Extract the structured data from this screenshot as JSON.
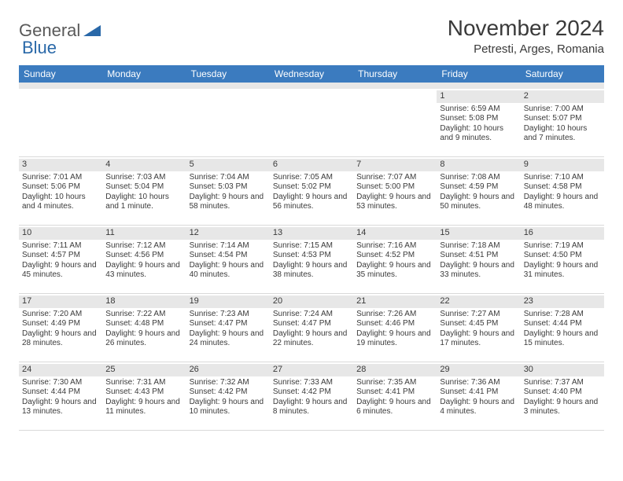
{
  "logo": {
    "text1": "General",
    "text2": "Blue"
  },
  "title": "November 2024",
  "location": "Petresti, Arges, Romania",
  "colors": {
    "header_bg": "#3b7bbf",
    "header_text": "#ffffff",
    "daynum_bg": "#e7e7e7",
    "text": "#3a3a3a",
    "logo_gray": "#595959",
    "logo_blue": "#2968a8",
    "border": "#d9d9d9",
    "background": "#ffffff"
  },
  "typography": {
    "title_fontsize": 28,
    "location_fontsize": 15,
    "dow_fontsize": 12,
    "daynum_fontsize": 11,
    "body_fontsize": 10
  },
  "dow": [
    "Sunday",
    "Monday",
    "Tuesday",
    "Wednesday",
    "Thursday",
    "Friday",
    "Saturday"
  ],
  "weeks": [
    [
      {
        "n": "",
        "sr": "",
        "ss": "",
        "dl": ""
      },
      {
        "n": "",
        "sr": "",
        "ss": "",
        "dl": ""
      },
      {
        "n": "",
        "sr": "",
        "ss": "",
        "dl": ""
      },
      {
        "n": "",
        "sr": "",
        "ss": "",
        "dl": ""
      },
      {
        "n": "",
        "sr": "",
        "ss": "",
        "dl": ""
      },
      {
        "n": "1",
        "sr": "Sunrise: 6:59 AM",
        "ss": "Sunset: 5:08 PM",
        "dl": "Daylight: 10 hours and 9 minutes."
      },
      {
        "n": "2",
        "sr": "Sunrise: 7:00 AM",
        "ss": "Sunset: 5:07 PM",
        "dl": "Daylight: 10 hours and 7 minutes."
      }
    ],
    [
      {
        "n": "3",
        "sr": "Sunrise: 7:01 AM",
        "ss": "Sunset: 5:06 PM",
        "dl": "Daylight: 10 hours and 4 minutes."
      },
      {
        "n": "4",
        "sr": "Sunrise: 7:03 AM",
        "ss": "Sunset: 5:04 PM",
        "dl": "Daylight: 10 hours and 1 minute."
      },
      {
        "n": "5",
        "sr": "Sunrise: 7:04 AM",
        "ss": "Sunset: 5:03 PM",
        "dl": "Daylight: 9 hours and 58 minutes."
      },
      {
        "n": "6",
        "sr": "Sunrise: 7:05 AM",
        "ss": "Sunset: 5:02 PM",
        "dl": "Daylight: 9 hours and 56 minutes."
      },
      {
        "n": "7",
        "sr": "Sunrise: 7:07 AM",
        "ss": "Sunset: 5:00 PM",
        "dl": "Daylight: 9 hours and 53 minutes."
      },
      {
        "n": "8",
        "sr": "Sunrise: 7:08 AM",
        "ss": "Sunset: 4:59 PM",
        "dl": "Daylight: 9 hours and 50 minutes."
      },
      {
        "n": "9",
        "sr": "Sunrise: 7:10 AM",
        "ss": "Sunset: 4:58 PM",
        "dl": "Daylight: 9 hours and 48 minutes."
      }
    ],
    [
      {
        "n": "10",
        "sr": "Sunrise: 7:11 AM",
        "ss": "Sunset: 4:57 PM",
        "dl": "Daylight: 9 hours and 45 minutes."
      },
      {
        "n": "11",
        "sr": "Sunrise: 7:12 AM",
        "ss": "Sunset: 4:56 PM",
        "dl": "Daylight: 9 hours and 43 minutes."
      },
      {
        "n": "12",
        "sr": "Sunrise: 7:14 AM",
        "ss": "Sunset: 4:54 PM",
        "dl": "Daylight: 9 hours and 40 minutes."
      },
      {
        "n": "13",
        "sr": "Sunrise: 7:15 AM",
        "ss": "Sunset: 4:53 PM",
        "dl": "Daylight: 9 hours and 38 minutes."
      },
      {
        "n": "14",
        "sr": "Sunrise: 7:16 AM",
        "ss": "Sunset: 4:52 PM",
        "dl": "Daylight: 9 hours and 35 minutes."
      },
      {
        "n": "15",
        "sr": "Sunrise: 7:18 AM",
        "ss": "Sunset: 4:51 PM",
        "dl": "Daylight: 9 hours and 33 minutes."
      },
      {
        "n": "16",
        "sr": "Sunrise: 7:19 AM",
        "ss": "Sunset: 4:50 PM",
        "dl": "Daylight: 9 hours and 31 minutes."
      }
    ],
    [
      {
        "n": "17",
        "sr": "Sunrise: 7:20 AM",
        "ss": "Sunset: 4:49 PM",
        "dl": "Daylight: 9 hours and 28 minutes."
      },
      {
        "n": "18",
        "sr": "Sunrise: 7:22 AM",
        "ss": "Sunset: 4:48 PM",
        "dl": "Daylight: 9 hours and 26 minutes."
      },
      {
        "n": "19",
        "sr": "Sunrise: 7:23 AM",
        "ss": "Sunset: 4:47 PM",
        "dl": "Daylight: 9 hours and 24 minutes."
      },
      {
        "n": "20",
        "sr": "Sunrise: 7:24 AM",
        "ss": "Sunset: 4:47 PM",
        "dl": "Daylight: 9 hours and 22 minutes."
      },
      {
        "n": "21",
        "sr": "Sunrise: 7:26 AM",
        "ss": "Sunset: 4:46 PM",
        "dl": "Daylight: 9 hours and 19 minutes."
      },
      {
        "n": "22",
        "sr": "Sunrise: 7:27 AM",
        "ss": "Sunset: 4:45 PM",
        "dl": "Daylight: 9 hours and 17 minutes."
      },
      {
        "n": "23",
        "sr": "Sunrise: 7:28 AM",
        "ss": "Sunset: 4:44 PM",
        "dl": "Daylight: 9 hours and 15 minutes."
      }
    ],
    [
      {
        "n": "24",
        "sr": "Sunrise: 7:30 AM",
        "ss": "Sunset: 4:44 PM",
        "dl": "Daylight: 9 hours and 13 minutes."
      },
      {
        "n": "25",
        "sr": "Sunrise: 7:31 AM",
        "ss": "Sunset: 4:43 PM",
        "dl": "Daylight: 9 hours and 11 minutes."
      },
      {
        "n": "26",
        "sr": "Sunrise: 7:32 AM",
        "ss": "Sunset: 4:42 PM",
        "dl": "Daylight: 9 hours and 10 minutes."
      },
      {
        "n": "27",
        "sr": "Sunrise: 7:33 AM",
        "ss": "Sunset: 4:42 PM",
        "dl": "Daylight: 9 hours and 8 minutes."
      },
      {
        "n": "28",
        "sr": "Sunrise: 7:35 AM",
        "ss": "Sunset: 4:41 PM",
        "dl": "Daylight: 9 hours and 6 minutes."
      },
      {
        "n": "29",
        "sr": "Sunrise: 7:36 AM",
        "ss": "Sunset: 4:41 PM",
        "dl": "Daylight: 9 hours and 4 minutes."
      },
      {
        "n": "30",
        "sr": "Sunrise: 7:37 AM",
        "ss": "Sunset: 4:40 PM",
        "dl": "Daylight: 9 hours and 3 minutes."
      }
    ]
  ]
}
